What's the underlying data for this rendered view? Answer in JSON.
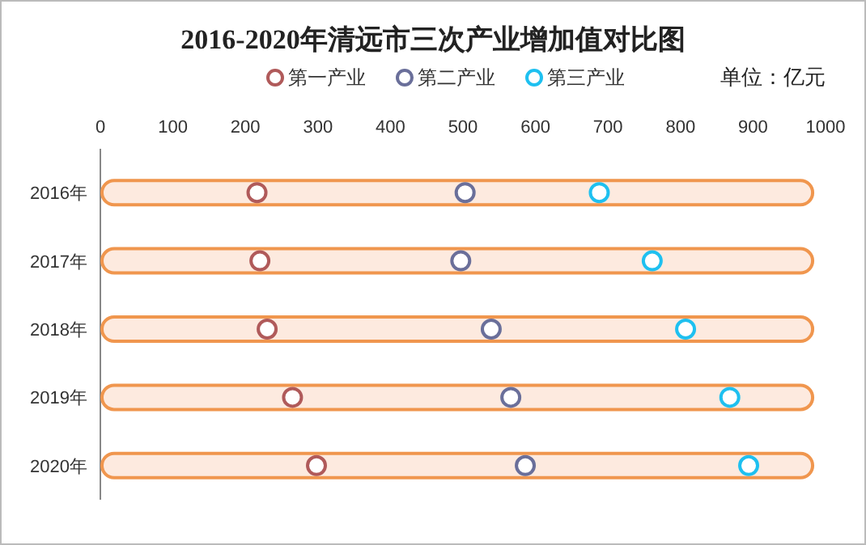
{
  "chart_data": {
    "type": "scatter",
    "title": "2016-2020年清远市三次产业增加值对比图",
    "orientation": "horizontal",
    "categories": [
      "2016年",
      "2017年",
      "2018年",
      "2019年",
      "2020年"
    ],
    "series": [
      {
        "type": "bar",
        "color": "#fdeadf",
        "values": [
          980,
          980,
          980,
          980,
          980
        ]
      },
      {
        "name": "第一产业",
        "color": "#b05a5a",
        "values": [
          216,
          220,
          230,
          265,
          298
        ]
      },
      {
        "name": "第二产业",
        "color": "#6a6f9a",
        "values": [
          503,
          497,
          539,
          566,
          586
        ]
      },
      {
        "name": "第三产业",
        "color": "#1ec0f0",
        "values": [
          688,
          761,
          807,
          868,
          894
        ]
      }
    ],
    "xlim": [
      0,
      1000
    ],
    "xticks": [
      0,
      100,
      200,
      300,
      400,
      500,
      600,
      700,
      800,
      900,
      1000
    ],
    "marker": "circle",
    "legend": "top",
    "grid": false,
    "annotations": [
      "单位：亿元"
    ]
  }
}
